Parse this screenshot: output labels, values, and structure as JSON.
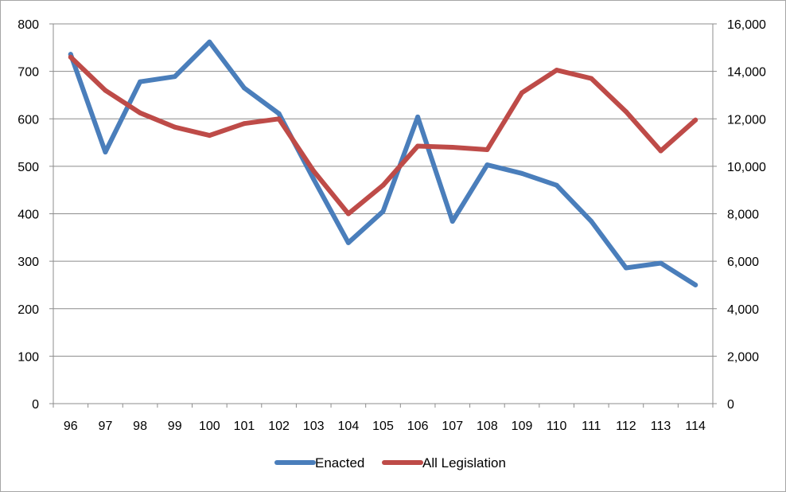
{
  "chart_data": {
    "type": "line",
    "title": "",
    "xlabel": "",
    "ylabel": "",
    "categories": [
      "96",
      "97",
      "98",
      "99",
      "100",
      "101",
      "102",
      "103",
      "104",
      "105",
      "106",
      "107",
      "108",
      "109",
      "110",
      "111",
      "112",
      "113",
      "114"
    ],
    "series": [
      {
        "name": "Enacted",
        "axis": "left",
        "color": "#4a7ebb",
        "values": [
          736,
          530,
          678,
          689,
          762,
          665,
          611,
          473,
          339,
          405,
          604,
          384,
          503,
          485,
          460,
          384,
          286,
          296,
          250
        ]
      },
      {
        "name": "All Legislation",
        "axis": "right",
        "color": "#be4b48",
        "values": [
          14600,
          13200,
          12250,
          11650,
          11300,
          11800,
          12000,
          9800,
          8000,
          9200,
          10850,
          10800,
          10700,
          13100,
          14050,
          13700,
          12300,
          10650,
          11950
        ]
      }
    ],
    "y_left": {
      "range": [
        0,
        800
      ],
      "ticks": [
        "0",
        "100",
        "200",
        "300",
        "400",
        "500",
        "600",
        "700",
        "800"
      ]
    },
    "y_right": {
      "range": [
        0,
        16000
      ],
      "ticks": [
        "0",
        "2,000",
        "4,000",
        "6,000",
        "8,000",
        "10,000",
        "12,000",
        "14,000",
        "16,000"
      ]
    },
    "grid": "horizontal",
    "legend": "bottom",
    "colors": {
      "gridline": "#8c8c8c",
      "axis": "#8c8c8c",
      "border": "#a6a6a6"
    }
  }
}
